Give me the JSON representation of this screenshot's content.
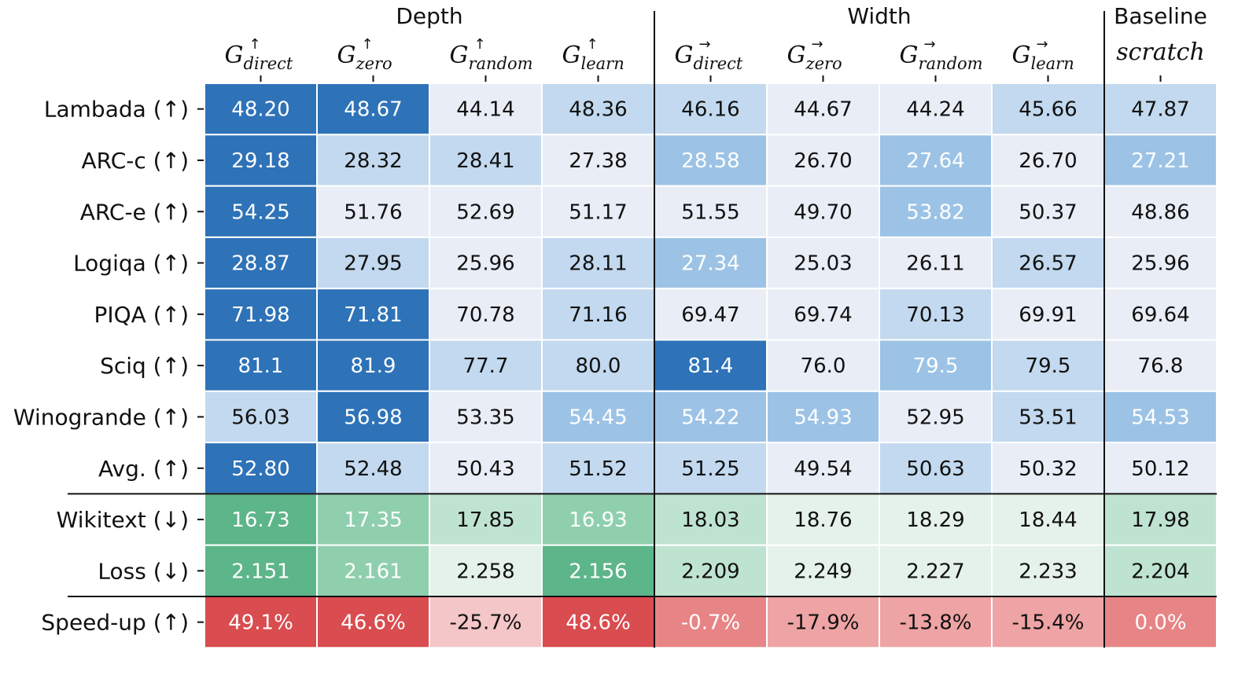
{
  "chart_data": {
    "type": "heatmap",
    "column_groups": [
      {
        "name": "Depth",
        "columns": [
          0,
          1,
          2,
          3
        ]
      },
      {
        "name": "Width",
        "columns": [
          4,
          5,
          6,
          7
        ]
      },
      {
        "name": "Baseline",
        "columns": [
          8
        ]
      }
    ],
    "columns": [
      {
        "symbol": "G",
        "arrow": "↑",
        "sub": "direct"
      },
      {
        "symbol": "G",
        "arrow": "↑",
        "sub": "zero"
      },
      {
        "symbol": "G",
        "arrow": "↑",
        "sub": "random"
      },
      {
        "symbol": "G",
        "arrow": "↑",
        "sub": "learn"
      },
      {
        "symbol": "G",
        "arrow": "→",
        "sub": "direct"
      },
      {
        "symbol": "G",
        "arrow": "→",
        "sub": "zero"
      },
      {
        "symbol": "G",
        "arrow": "→",
        "sub": "random"
      },
      {
        "symbol": "G",
        "arrow": "→",
        "sub": "learn"
      },
      {
        "plain": "scratch"
      }
    ],
    "row_sections": [
      {
        "colormap": "blue",
        "rows": [
          {
            "label": "Lambada (↑)",
            "values": [
              "48.20",
              "48.67",
              "44.14",
              "48.36",
              "46.16",
              "44.67",
              "44.24",
              "45.66",
              "47.87"
            ]
          },
          {
            "label": "ARC-c (↑)",
            "values": [
              "29.18",
              "28.32",
              "28.41",
              "27.38",
              "28.58",
              "26.70",
              "27.64",
              "26.70",
              "27.21"
            ]
          },
          {
            "label": "ARC-e (↑)",
            "values": [
              "54.25",
              "51.76",
              "52.69",
              "51.17",
              "51.55",
              "49.70",
              "53.82",
              "50.37",
              "48.86"
            ]
          },
          {
            "label": "Logiqa (↑)",
            "values": [
              "28.87",
              "27.95",
              "25.96",
              "28.11",
              "27.34",
              "25.03",
              "26.11",
              "26.57",
              "25.96"
            ]
          },
          {
            "label": "PIQA (↑)",
            "values": [
              "71.98",
              "71.81",
              "70.78",
              "71.16",
              "69.47",
              "69.74",
              "70.13",
              "69.91",
              "69.64"
            ]
          },
          {
            "label": "Sciq (↑)",
            "values": [
              "81.1",
              "81.9",
              "77.7",
              "80.0",
              "81.4",
              "76.0",
              "79.5",
              "79.5",
              "76.8"
            ]
          },
          {
            "label": "Winogrande (↑)",
            "values": [
              "56.03",
              "56.98",
              "53.35",
              "54.45",
              "54.22",
              "54.93",
              "52.95",
              "53.51",
              "54.53"
            ]
          },
          {
            "label": "Avg. (↑)",
            "values": [
              "52.80",
              "52.48",
              "50.43",
              "51.52",
              "51.25",
              "49.54",
              "50.63",
              "50.32",
              "50.12"
            ]
          }
        ]
      },
      {
        "colormap": "green",
        "rows": [
          {
            "label": "Wikitext (↓)",
            "values": [
              "16.73",
              "17.35",
              "17.85",
              "16.93",
              "18.03",
              "18.76",
              "18.29",
              "18.44",
              "17.98"
            ]
          },
          {
            "label": "Loss (↓)",
            "values": [
              "2.151",
              "2.161",
              "2.258",
              "2.156",
              "2.209",
              "2.249",
              "2.227",
              "2.233",
              "2.204"
            ]
          }
        ]
      },
      {
        "colormap": "red",
        "rows": [
          {
            "label": "Speed-up (↑)",
            "values": [
              "49.1%",
              "46.6%",
              "-25.7%",
              "48.6%",
              "-0.7%",
              "-17.9%",
              "-13.8%",
              "-15.4%",
              "0.0%"
            ]
          }
        ]
      }
    ],
    "colors": {
      "blue": [
        "#e8edf6",
        "#c2d9ef",
        "#9cc3e5",
        "#2e72b8"
      ],
      "green": [
        "#e4f2ea",
        "#bfe3d1",
        "#8fcfae",
        "#5db58a"
      ],
      "red": [
        "#f5c6c7",
        "#eea3a4",
        "#e78485",
        "#d94c4f"
      ],
      "text_dark": "#111111",
      "text_light": "#ffffff"
    },
    "cell_levels": [
      [
        3,
        3,
        0,
        1,
        1,
        0,
        0,
        1,
        1
      ],
      [
        3,
        1,
        1,
        0,
        2,
        0,
        2,
        0,
        2
      ],
      [
        3,
        0,
        0,
        0,
        0,
        0,
        2,
        0,
        0
      ],
      [
        3,
        1,
        0,
        1,
        2,
        0,
        0,
        1,
        0
      ],
      [
        3,
        3,
        0,
        1,
        0,
        0,
        1,
        0,
        0
      ],
      [
        3,
        3,
        1,
        1,
        3,
        0,
        2,
        1,
        0
      ],
      [
        1,
        3,
        0,
        2,
        2,
        2,
        0,
        1,
        2
      ],
      [
        3,
        1,
        0,
        1,
        1,
        0,
        1,
        0,
        0
      ],
      [
        3,
        2,
        1,
        2,
        1,
        0,
        0,
        0,
        1
      ],
      [
        3,
        2,
        0,
        3,
        1,
        0,
        0,
        0,
        1
      ],
      [
        3,
        3,
        0,
        3,
        2,
        1,
        1,
        1,
        2
      ]
    ]
  }
}
